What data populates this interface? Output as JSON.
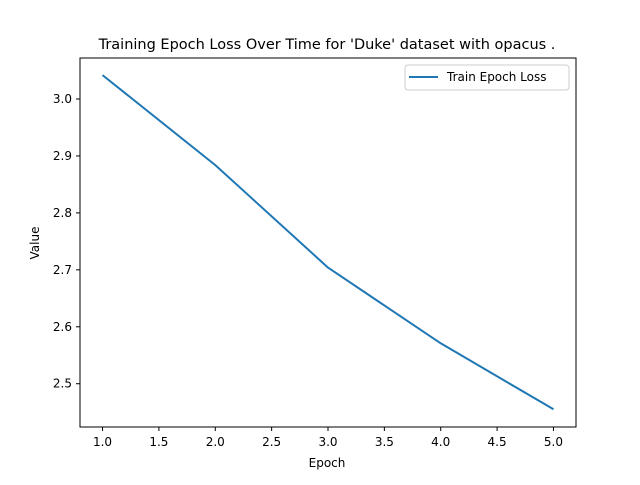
{
  "chart_data": {
    "type": "line",
    "title": "Training Epoch Loss Over Time for 'Duke' dataset with opacus .",
    "xlabel": "Epoch",
    "ylabel": "Value",
    "xlim": [
      0.8,
      5.2
    ],
    "ylim": [
      2.424,
      3.072
    ],
    "xticks": [
      "1.0",
      "1.5",
      "2.0",
      "2.5",
      "3.0",
      "3.5",
      "4.0",
      "4.5",
      "5.0"
    ],
    "yticks": [
      "2.5",
      "2.6",
      "2.7",
      "2.8",
      "2.9",
      "3.0"
    ],
    "grid": false,
    "legend_position": "top-right",
    "series": [
      {
        "name": "Train Epoch Loss",
        "color": "#1f77b4",
        "x": [
          1,
          2,
          3,
          4,
          5
        ],
        "y": [
          3.042,
          2.884,
          2.704,
          2.571,
          2.455
        ]
      }
    ]
  }
}
